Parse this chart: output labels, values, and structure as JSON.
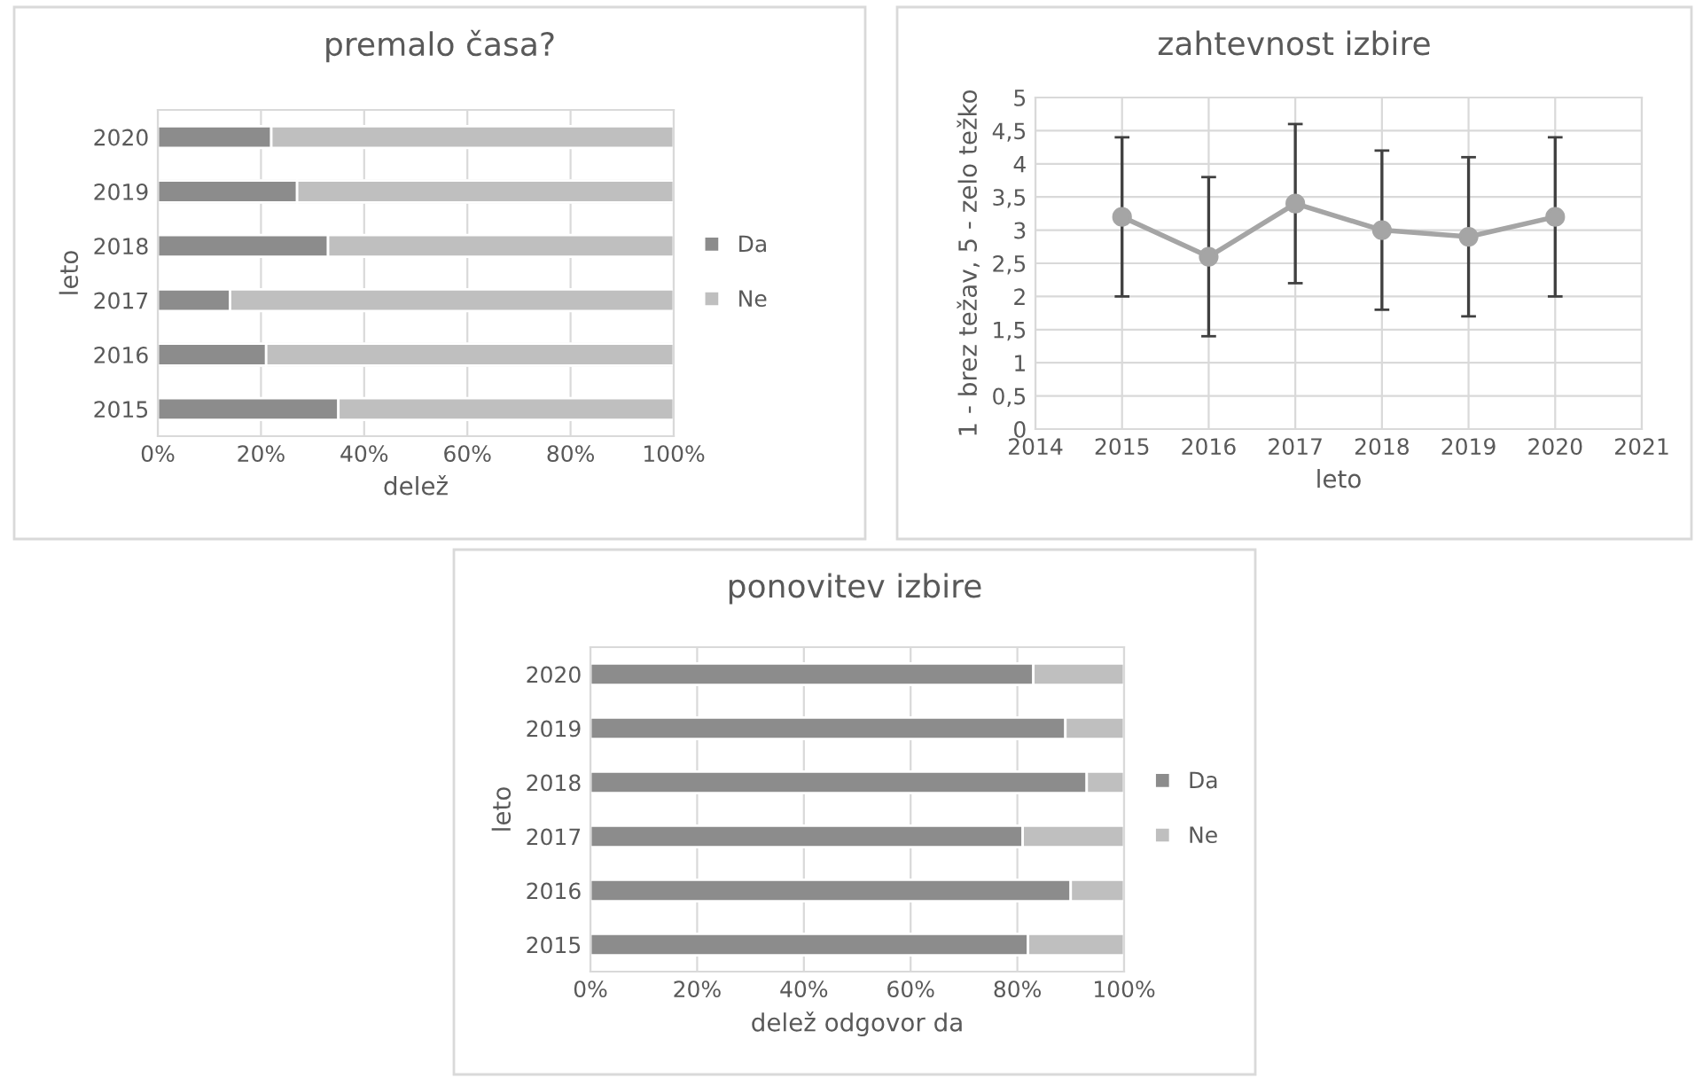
{
  "chart_data": [
    {
      "type": "bar",
      "title": "premalo časa?",
      "xlabel": "delež",
      "ylabel": "leto",
      "orientation": "horizontal",
      "stacked": true,
      "categories": [
        "2020",
        "2019",
        "2018",
        "2017",
        "2016",
        "2015"
      ],
      "series": [
        {
          "name": "Da",
          "color": "#8c8c8c",
          "values": [
            22,
            27,
            33,
            14,
            21,
            35
          ]
        },
        {
          "name": "Ne",
          "color": "#bfbfbf",
          "values": [
            78,
            73,
            67,
            86,
            79,
            65
          ]
        }
      ],
      "xlim": [
        0,
        100
      ],
      "xticks": [
        {
          "value": 0,
          "label": "0%"
        },
        {
          "value": 20,
          "label": "20%"
        },
        {
          "value": 40,
          "label": "40%"
        },
        {
          "value": 60,
          "label": "60%"
        },
        {
          "value": 80,
          "label": "80%"
        },
        {
          "value": 100,
          "label": "100%"
        }
      ],
      "grid": true,
      "legend": "right"
    },
    {
      "type": "line",
      "title": "zahtevnost izbire",
      "xlabel": "leto",
      "ylabel": "1 - brez težav, 5 - zelo težko",
      "x": [
        2015,
        2016,
        2017,
        2018,
        2019,
        2020
      ],
      "series": [
        {
          "color": "#a5a5a5",
          "values": [
            3.2,
            2.6,
            3.4,
            3.0,
            2.9,
            3.2
          ],
          "errors": [
            1.2,
            1.2,
            1.2,
            1.2,
            1.2,
            1.2
          ]
        }
      ],
      "xlim": [
        2014,
        2021
      ],
      "xticks": [
        2014,
        2015,
        2016,
        2017,
        2018,
        2019,
        2020,
        2021
      ],
      "ylim": [
        0,
        5
      ],
      "yticks": [
        0,
        {
          "value": 0.5,
          "label": "0,5"
        },
        1,
        {
          "value": 1.5,
          "label": "1,5"
        },
        2,
        {
          "value": 2.5,
          "label": "2,5"
        },
        3,
        {
          "value": 3.5,
          "label": "3,5"
        },
        4,
        {
          "value": 4.5,
          "label": "4,5"
        },
        5
      ],
      "grid": true,
      "marker": "circle",
      "line_style": "solid"
    },
    {
      "type": "bar",
      "title": "ponovitev izbire",
      "xlabel": "delež odgovor da",
      "ylabel": "leto",
      "orientation": "horizontal",
      "stacked": true,
      "categories": [
        "2020",
        "2019",
        "2018",
        "2017",
        "2016",
        "2015"
      ],
      "series": [
        {
          "name": "Da",
          "color": "#8c8c8c",
          "values": [
            83,
            89,
            93,
            81,
            90,
            82
          ]
        },
        {
          "name": "Ne",
          "color": "#bfbfbf",
          "values": [
            17,
            11,
            7,
            19,
            10,
            18
          ]
        }
      ],
      "xlim": [
        0,
        100
      ],
      "xticks": [
        {
          "value": 0,
          "label": "0%"
        },
        {
          "value": 20,
          "label": "20%"
        },
        {
          "value": 40,
          "label": "40%"
        },
        {
          "value": 60,
          "label": "60%"
        },
        {
          "value": 80,
          "label": "80%"
        },
        {
          "value": 100,
          "label": "100%"
        }
      ],
      "grid": true,
      "legend": "right"
    }
  ]
}
